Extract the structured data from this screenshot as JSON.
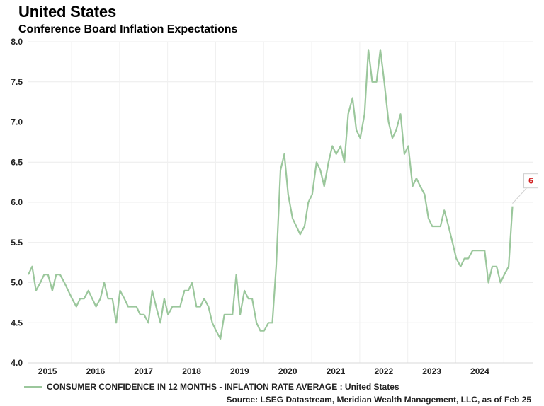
{
  "title": "United States",
  "subtitle": "Conference Board Inflation Expectations",
  "chart_data": {
    "type": "line",
    "title": "United States",
    "subtitle": "Conference Board Inflation Expectations",
    "xlabel": "",
    "ylabel": "",
    "x_range": [
      2014.6,
      2025.1
    ],
    "ylim": [
      4.0,
      8.0
    ],
    "y_ticks": [
      "4.0",
      "4.5",
      "5.0",
      "5.5",
      "6.0",
      "6.5",
      "7.0",
      "7.5",
      "8.0"
    ],
    "x_ticks": [
      "2015",
      "2016",
      "2017",
      "2018",
      "2019",
      "2020",
      "2021",
      "2022",
      "2023",
      "2024"
    ],
    "grid": true,
    "legend_position": "bottom-left",
    "series": [
      {
        "name": "CONSUMER CONFIDENCE IN 12 MONTHS - INFLATION RATE AVERAGE : United States",
        "color": "#9bc79c",
        "points": [
          [
            2014.6,
            5.1
          ],
          [
            2014.68,
            5.2
          ],
          [
            2014.76,
            4.9
          ],
          [
            2014.85,
            5.0
          ],
          [
            2014.93,
            5.1
          ],
          [
            2015.01,
            5.1
          ],
          [
            2015.1,
            4.9
          ],
          [
            2015.18,
            5.1
          ],
          [
            2015.26,
            5.1
          ],
          [
            2015.35,
            5.0
          ],
          [
            2015.43,
            4.9
          ],
          [
            2015.51,
            4.8
          ],
          [
            2015.6,
            4.7
          ],
          [
            2015.68,
            4.8
          ],
          [
            2015.76,
            4.8
          ],
          [
            2015.85,
            4.9
          ],
          [
            2015.93,
            4.8
          ],
          [
            2016.01,
            4.7
          ],
          [
            2016.1,
            4.8
          ],
          [
            2016.18,
            5.0
          ],
          [
            2016.26,
            4.8
          ],
          [
            2016.35,
            4.8
          ],
          [
            2016.43,
            4.5
          ],
          [
            2016.51,
            4.9
          ],
          [
            2016.6,
            4.8
          ],
          [
            2016.68,
            4.7
          ],
          [
            2016.76,
            4.7
          ],
          [
            2016.85,
            4.7
          ],
          [
            2016.93,
            4.6
          ],
          [
            2017.01,
            4.6
          ],
          [
            2017.1,
            4.5
          ],
          [
            2017.18,
            4.9
          ],
          [
            2017.26,
            4.7
          ],
          [
            2017.35,
            4.5
          ],
          [
            2017.43,
            4.8
          ],
          [
            2017.51,
            4.6
          ],
          [
            2017.6,
            4.7
          ],
          [
            2017.68,
            4.7
          ],
          [
            2017.76,
            4.7
          ],
          [
            2017.85,
            4.9
          ],
          [
            2017.93,
            4.9
          ],
          [
            2018.01,
            5.0
          ],
          [
            2018.1,
            4.7
          ],
          [
            2018.18,
            4.7
          ],
          [
            2018.26,
            4.8
          ],
          [
            2018.35,
            4.7
          ],
          [
            2018.43,
            4.5
          ],
          [
            2018.51,
            4.4
          ],
          [
            2018.6,
            4.3
          ],
          [
            2018.68,
            4.6
          ],
          [
            2018.76,
            4.6
          ],
          [
            2018.85,
            4.6
          ],
          [
            2018.93,
            5.1
          ],
          [
            2019.01,
            4.6
          ],
          [
            2019.1,
            4.9
          ],
          [
            2019.18,
            4.8
          ],
          [
            2019.26,
            4.8
          ],
          [
            2019.35,
            4.5
          ],
          [
            2019.43,
            4.4
          ],
          [
            2019.51,
            4.4
          ],
          [
            2019.6,
            4.5
          ],
          [
            2019.68,
            4.5
          ],
          [
            2019.76,
            5.2
          ],
          [
            2019.85,
            6.4
          ],
          [
            2019.93,
            6.6
          ],
          [
            2020.01,
            6.1
          ],
          [
            2020.1,
            5.8
          ],
          [
            2020.18,
            5.7
          ],
          [
            2020.26,
            5.6
          ],
          [
            2020.35,
            5.7
          ],
          [
            2020.43,
            6.0
          ],
          [
            2020.51,
            6.1
          ],
          [
            2020.6,
            6.5
          ],
          [
            2020.68,
            6.4
          ],
          [
            2020.76,
            6.2
          ],
          [
            2020.85,
            6.5
          ],
          [
            2020.93,
            6.7
          ],
          [
            2021.01,
            6.6
          ],
          [
            2021.1,
            6.7
          ],
          [
            2021.18,
            6.5
          ],
          [
            2021.26,
            7.1
          ],
          [
            2021.35,
            7.3
          ],
          [
            2021.43,
            6.9
          ],
          [
            2021.51,
            6.8
          ],
          [
            2021.6,
            7.1
          ],
          [
            2021.68,
            7.9
          ],
          [
            2021.76,
            7.5
          ],
          [
            2021.85,
            7.5
          ],
          [
            2021.93,
            7.9
          ],
          [
            2022.01,
            7.5
          ],
          [
            2022.1,
            7.0
          ],
          [
            2022.18,
            6.8
          ],
          [
            2022.26,
            6.9
          ],
          [
            2022.35,
            7.1
          ],
          [
            2022.43,
            6.6
          ],
          [
            2022.51,
            6.7
          ],
          [
            2022.6,
            6.2
          ],
          [
            2022.68,
            6.3
          ],
          [
            2022.76,
            6.2
          ],
          [
            2022.85,
            6.1
          ],
          [
            2022.93,
            5.8
          ],
          [
            2023.01,
            5.7
          ],
          [
            2023.1,
            5.7
          ],
          [
            2023.18,
            5.7
          ],
          [
            2023.26,
            5.9
          ],
          [
            2023.35,
            5.7
          ],
          [
            2023.43,
            5.5
          ],
          [
            2023.51,
            5.3
          ],
          [
            2023.6,
            5.2
          ],
          [
            2023.68,
            5.3
          ],
          [
            2023.76,
            5.3
          ],
          [
            2023.85,
            5.4
          ],
          [
            2023.93,
            5.4
          ],
          [
            2024.01,
            5.4
          ],
          [
            2024.1,
            5.4
          ],
          [
            2024.18,
            5.0
          ],
          [
            2024.26,
            5.2
          ],
          [
            2024.35,
            5.2
          ],
          [
            2024.43,
            5.0
          ],
          [
            2024.51,
            5.1
          ],
          [
            2024.6,
            5.2
          ],
          [
            2024.68,
            5.95
          ]
        ]
      }
    ],
    "annotations": [
      {
        "label": "6",
        "x": 2024.68,
        "y": 5.95,
        "color": "#d11f1f"
      }
    ]
  },
  "legend": {
    "label": "CONSUMER CONFIDENCE IN 12 MONTHS - INFLATION RATE AVERAGE : United States",
    "color": "#9bc79c"
  },
  "source": "Source: LSEG Datastream, Meridian Wealth Management, LLC, as of Feb 25"
}
